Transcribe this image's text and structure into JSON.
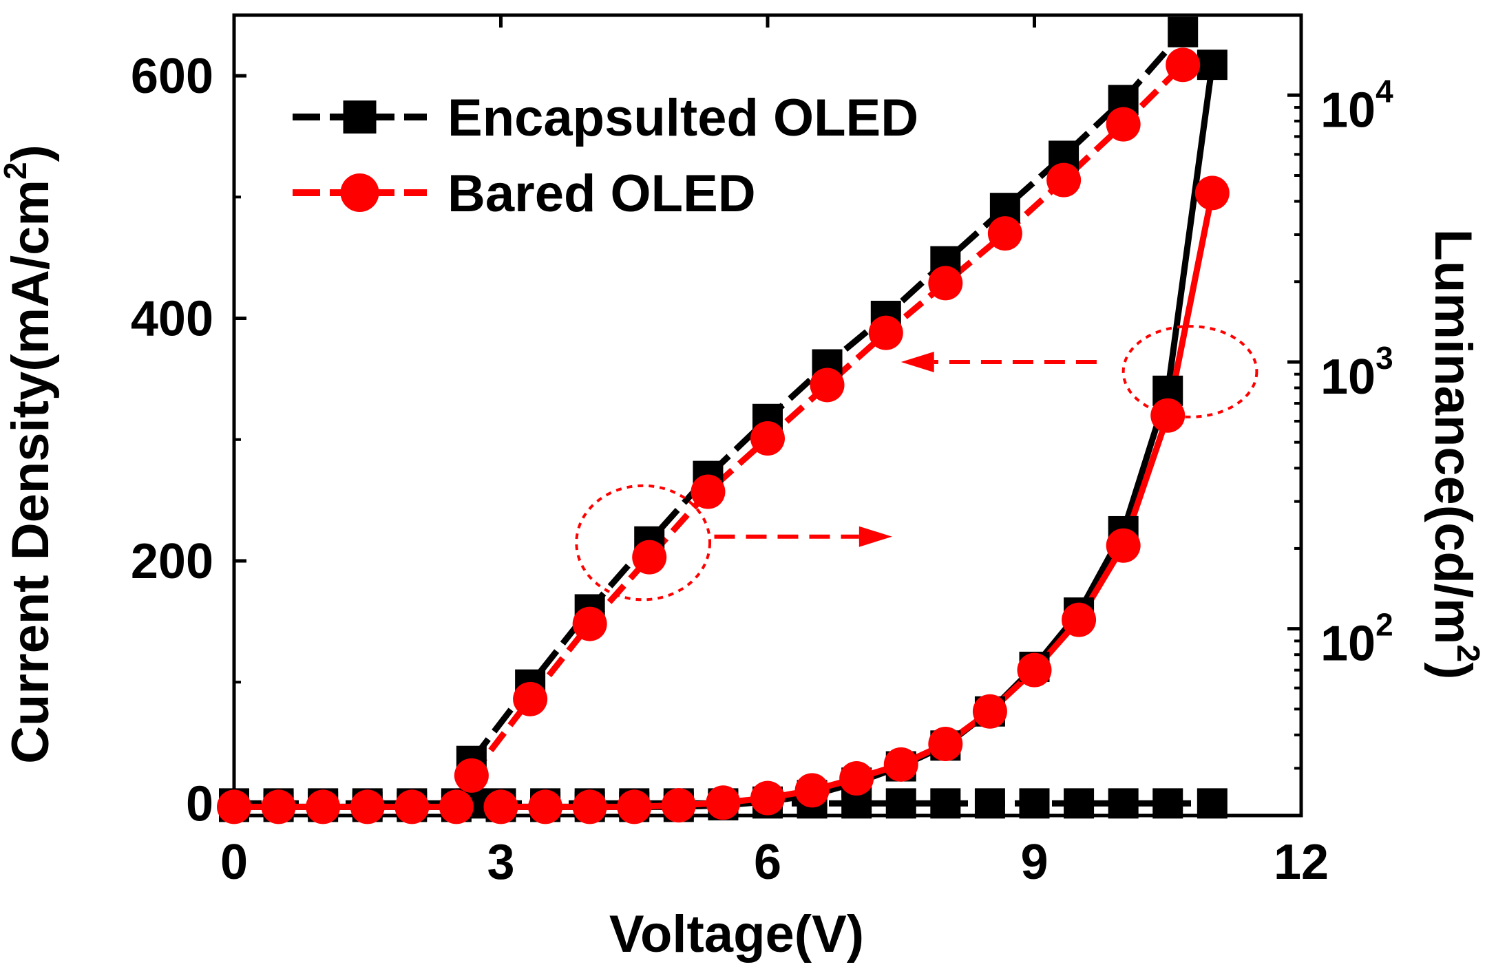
{
  "chart_data": {
    "type": "line",
    "xlabel": "Voltage(V)",
    "ylabel_left": {
      "text": "Current Density(mA/cm",
      "sup": "2",
      "close": ")"
    },
    "ylabel_right": {
      "text": "Luminance(cd/m",
      "sup": "2",
      "close": ")"
    },
    "xlim": [
      0,
      12
    ],
    "ylim_left": [
      -10,
      650
    ],
    "ylim_right_log": [
      1.3,
      4.3
    ],
    "x_ticks": [
      {
        "value": 0,
        "label": "0"
      },
      {
        "value": 3,
        "label": "3"
      },
      {
        "value": 6,
        "label": "6"
      },
      {
        "value": 9,
        "label": "9"
      },
      {
        "value": 12,
        "label": "12"
      }
    ],
    "y_left_ticks": [
      {
        "value": 0,
        "label": "0"
      },
      {
        "value": 200,
        "label": "200"
      },
      {
        "value": 400,
        "label": "400"
      },
      {
        "value": 600,
        "label": "600"
      }
    ],
    "y_right_ticks": [
      {
        "exp": 2,
        "base": "10",
        "sup": "2"
      },
      {
        "exp": 3,
        "base": "10",
        "sup": "3"
      },
      {
        "exp": 4,
        "base": "10",
        "sup": "4"
      }
    ],
    "legend_position": "top-left",
    "series": [
      {
        "name": "Encapsulted OLED",
        "color": "#000000",
        "marker": "square",
        "axis": "left",
        "x": [
          0,
          0.5,
          1,
          1.5,
          2,
          2.5,
          2.67,
          3,
          3.5,
          4,
          4.5,
          5,
          5.5,
          6,
          6.5,
          7,
          7.5,
          8,
          8.5,
          9,
          9.5,
          10,
          10.5,
          11
        ],
        "y": [
          0,
          0,
          0,
          0,
          0,
          0,
          0,
          0,
          0,
          0,
          0,
          0,
          0,
          0,
          0,
          0,
          0,
          0,
          0,
          0,
          0,
          0,
          0,
          0
        ]
      },
      {
        "name": "Encapsulted OLED",
        "color": "#000000",
        "marker": "square",
        "axis": "left",
        "x": [
          2.67,
          3.33,
          4.0,
          4.67,
          5.33,
          6.0,
          6.67,
          7.33,
          8.0,
          8.67,
          9.33,
          10.0,
          10.67
        ],
        "y": [
          35,
          98,
          160,
          216,
          270,
          317,
          362,
          402,
          447,
          491,
          534,
          580,
          636
        ]
      },
      {
        "name": "Bared OLED",
        "color": "#ff0000",
        "marker": "circle",
        "axis": "left",
        "x": [
          2.67,
          3.33,
          4.0,
          4.67,
          5.33,
          6.0,
          6.67,
          7.33,
          8.0,
          8.67,
          9.33,
          10.0,
          10.67
        ],
        "y": [
          23,
          86,
          148,
          203,
          257,
          301,
          345,
          388,
          429,
          470,
          514,
          560,
          609
        ]
      },
      {
        "name": "Encapsulted OLED",
        "color": "#000000",
        "marker": "square",
        "axis": "right",
        "x": [
          0,
          0.5,
          1,
          1.5,
          2,
          2.5,
          3,
          3.5,
          4,
          4.5,
          5,
          5.5,
          6,
          6.5,
          7,
          7.5,
          8,
          8.5,
          9,
          9.5,
          10,
          10.5,
          11
        ],
        "y": [
          21.5,
          21.5,
          21.5,
          21.5,
          21.5,
          21.5,
          21.5,
          21.5,
          21.5,
          21.5,
          21.5,
          21.8,
          22.5,
          23.8,
          26.5,
          30.5,
          36.5,
          49,
          72,
          115,
          232,
          780,
          13000
        ]
      },
      {
        "name": "Bared OLED",
        "color": "#ff0000",
        "marker": "circle",
        "axis": "right",
        "x": [
          0,
          0.5,
          1,
          1.5,
          2,
          2.5,
          3,
          3.5,
          4,
          4.5,
          5,
          5.5,
          6,
          6.5,
          7,
          7.5,
          8,
          8.5,
          9,
          9.5,
          10,
          10.5,
          11
        ],
        "y": [
          21.5,
          21.5,
          21.5,
          21.5,
          21.5,
          21.5,
          21.5,
          21.5,
          21.5,
          21.5,
          21.8,
          22.3,
          23.2,
          24.8,
          27.5,
          31,
          37,
          49,
          70,
          108,
          205,
          630,
          4300
        ]
      }
    ],
    "annotations": [
      {
        "type": "ellipse",
        "cx": 4.6,
        "cy": 215,
        "rx": 0.75,
        "ry": 47,
        "axis": "left"
      },
      {
        "type": "arrow",
        "from": [
          5.4,
          220
        ],
        "to": [
          7.4,
          220
        ],
        "axis": "left"
      },
      {
        "type": "ellipse",
        "cx": 10.75,
        "cy": 920,
        "rx": 0.75,
        "ry": 0.17,
        "axis": "right_log"
      },
      {
        "type": "arrow",
        "from": [
          9.7,
          1000
        ],
        "to": [
          7.5,
          1000
        ],
        "axis": "right_log"
      }
    ]
  }
}
